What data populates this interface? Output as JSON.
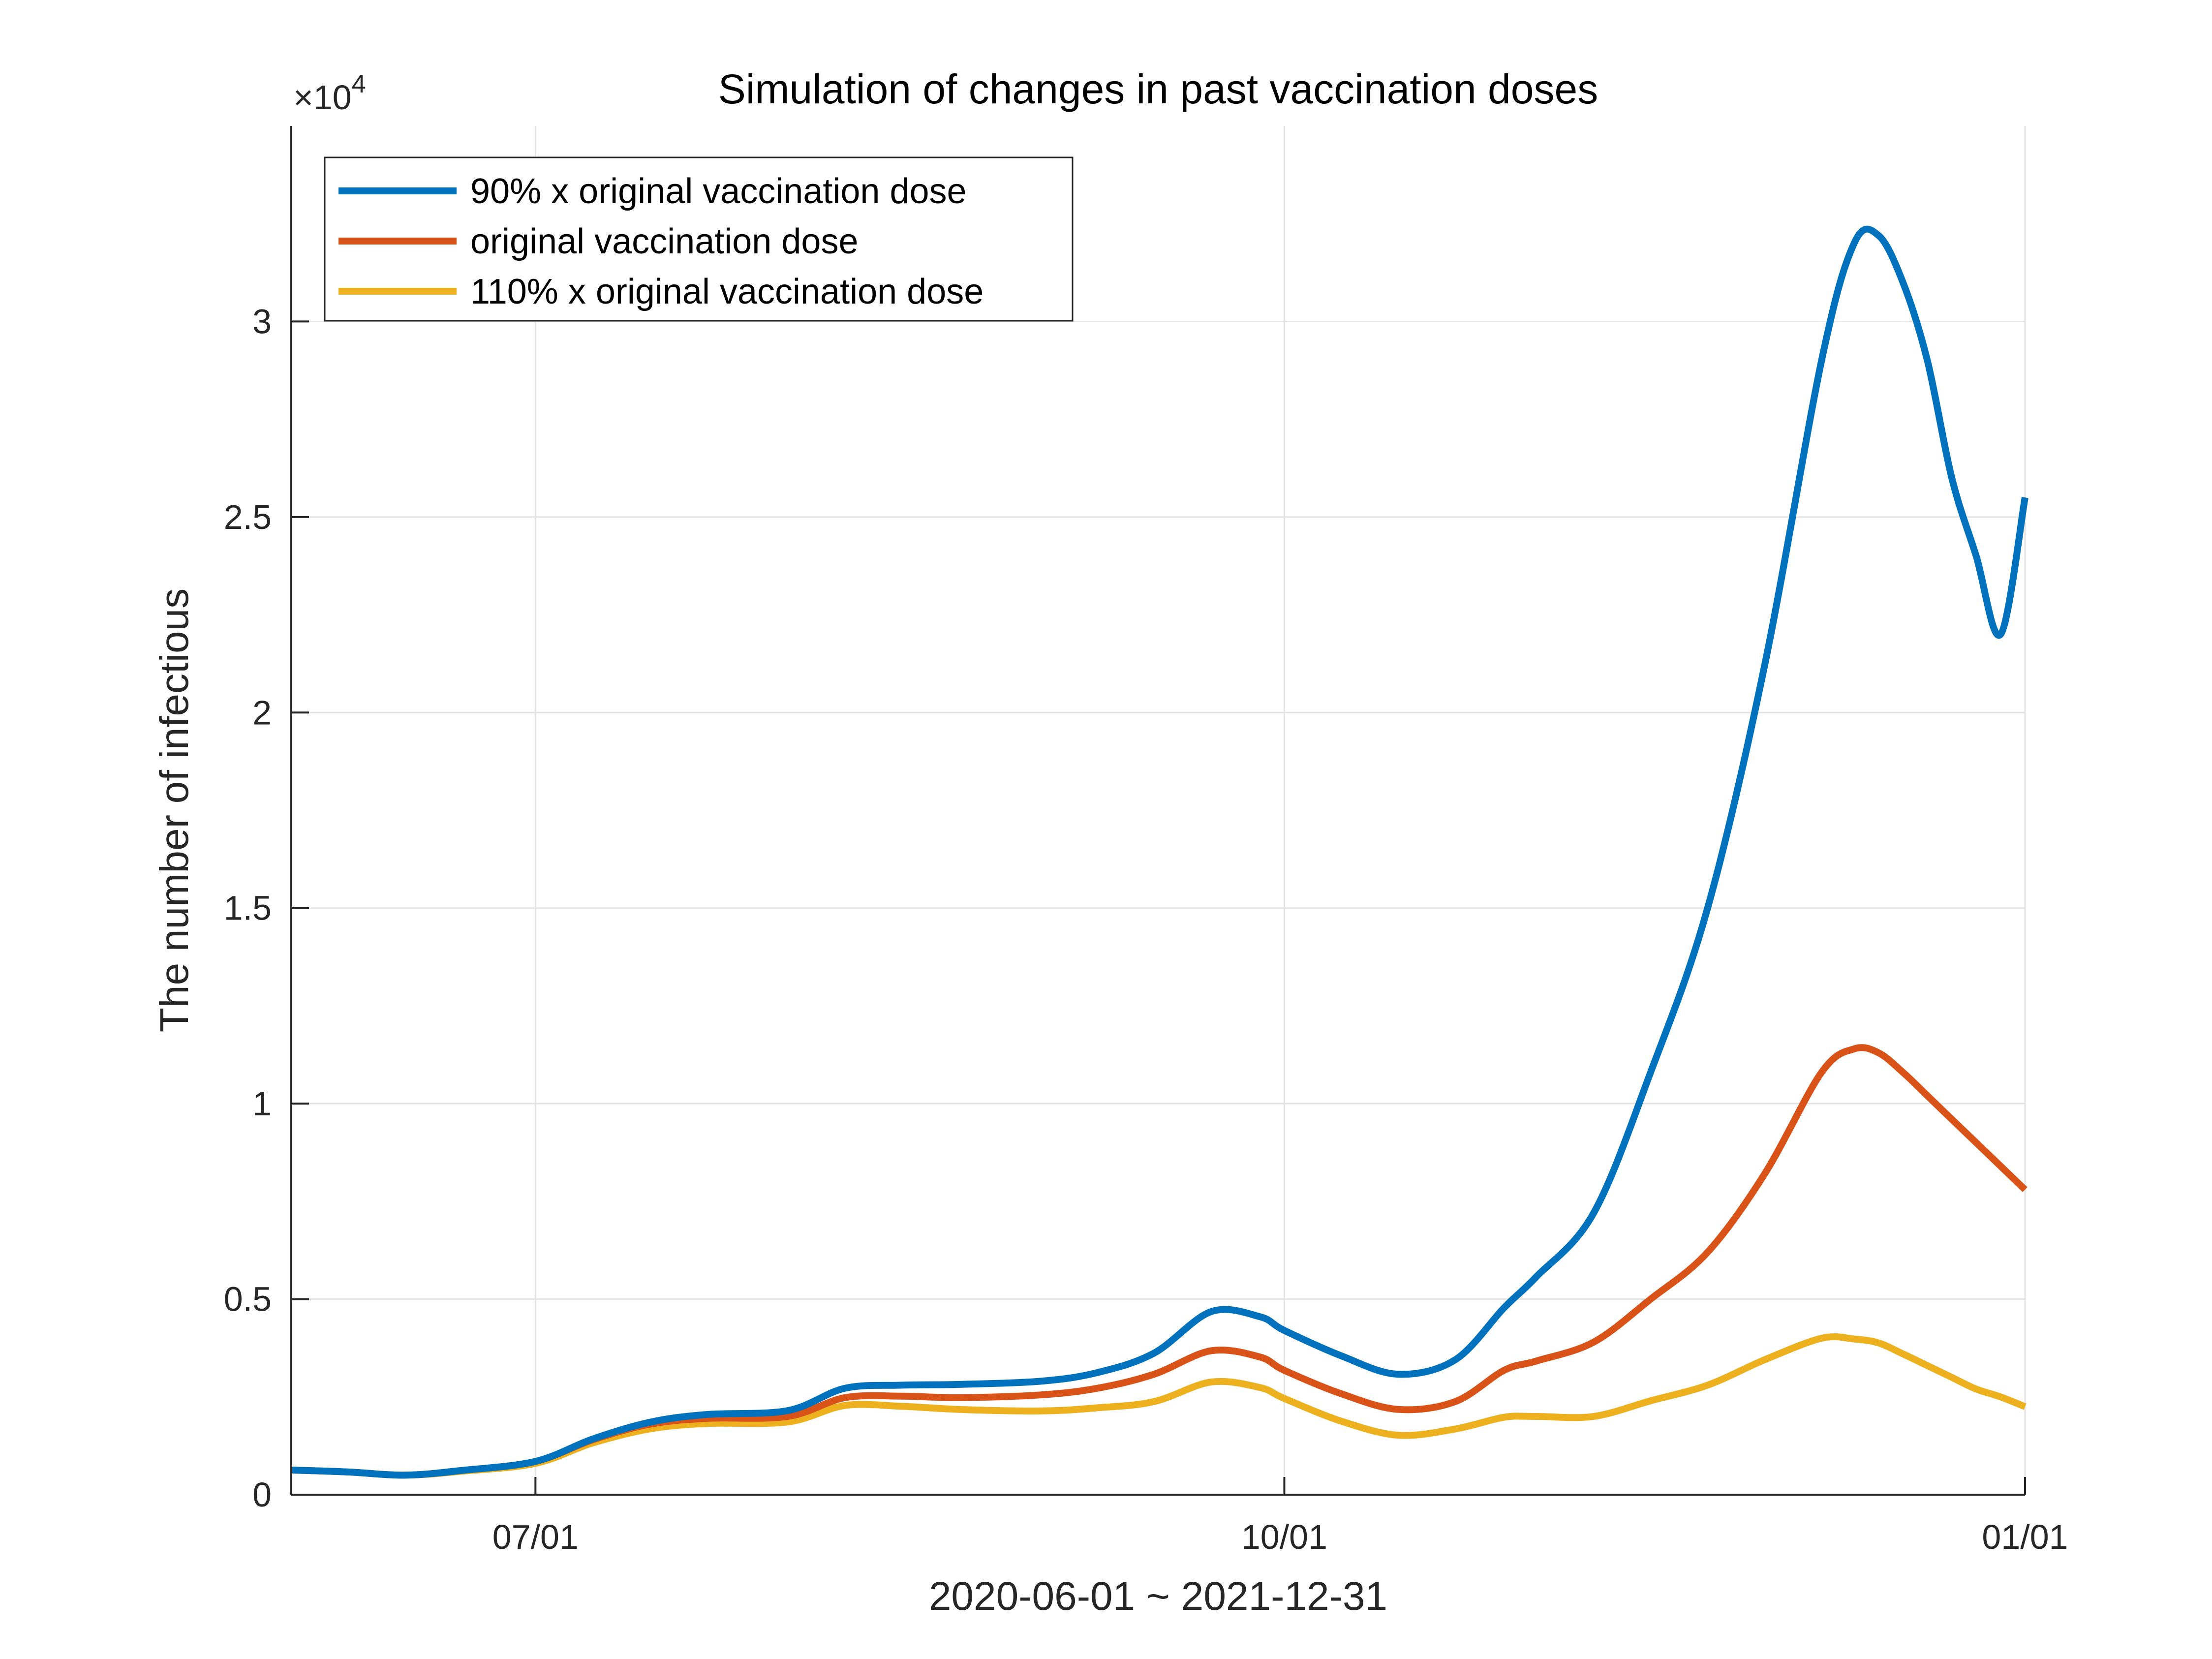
{
  "chart_data": {
    "type": "line",
    "title": "Simulation of changes in past vaccination doses",
    "xlabel": "2020-06-01 ~ 2021-12-31",
    "ylabel": "The number of infectious",
    "y_exponent_label": {
      "prefix": "×10",
      "power": "4"
    },
    "grid": true,
    "legend_position": "top-left",
    "x_domain": [
      "2021-06-01",
      "2021-12-31"
    ],
    "x_ticks": [
      {
        "date": "2021-07-01",
        "label": "07/01"
      },
      {
        "date": "2021-10-01",
        "label": "10/01"
      },
      {
        "date": "2022-01-01",
        "label": "01/01"
      }
    ],
    "ylim": [
      0,
      3.5
    ],
    "y_ticks": [
      {
        "value": 0,
        "label": "0"
      },
      {
        "value": 0.5,
        "label": "0.5"
      },
      {
        "value": 1,
        "label": "1"
      },
      {
        "value": 1.5,
        "label": "1.5"
      },
      {
        "value": 2,
        "label": "2"
      },
      {
        "value": 2.5,
        "label": "2.5"
      },
      {
        "value": 3,
        "label": "3"
      }
    ],
    "x": [
      "2021-06-01",
      "2021-06-08",
      "2021-06-15",
      "2021-06-22",
      "2021-07-01",
      "2021-07-08",
      "2021-07-15",
      "2021-07-22",
      "2021-08-01",
      "2021-08-08",
      "2021-08-15",
      "2021-08-22",
      "2021-09-01",
      "2021-09-08",
      "2021-09-15",
      "2021-09-22",
      "2021-09-28",
      "2021-10-01",
      "2021-10-08",
      "2021-10-15",
      "2021-10-22",
      "2021-10-28",
      "2021-11-01",
      "2021-11-08",
      "2021-11-15",
      "2021-11-22",
      "2021-11-29",
      "2021-12-06",
      "2021-12-10",
      "2021-12-13",
      "2021-12-16",
      "2021-12-19",
      "2021-12-22",
      "2021-12-25",
      "2021-12-28",
      "2021-12-31"
    ],
    "series": [
      {
        "name": "90% x original vaccination dose",
        "color": "#0072BD",
        "values": [
          0.063,
          0.058,
          0.05,
          0.062,
          0.085,
          0.142,
          0.185,
          0.205,
          0.215,
          0.272,
          0.28,
          0.282,
          0.29,
          0.312,
          0.362,
          0.468,
          0.455,
          0.42,
          0.355,
          0.308,
          0.345,
          0.478,
          0.558,
          0.72,
          1.08,
          1.5,
          2.12,
          2.9,
          3.2,
          3.22,
          3.1,
          2.9,
          2.6,
          2.4,
          2.2,
          2.55
        ]
      },
      {
        "name": "original vaccination dose",
        "color": "#D95319",
        "values": [
          0.063,
          0.058,
          0.05,
          0.062,
          0.085,
          0.14,
          0.18,
          0.195,
          0.2,
          0.248,
          0.252,
          0.248,
          0.255,
          0.272,
          0.308,
          0.368,
          0.352,
          0.318,
          0.258,
          0.218,
          0.238,
          0.318,
          0.342,
          0.39,
          0.5,
          0.62,
          0.82,
          1.08,
          1.14,
          1.13,
          1.08,
          1.02,
          0.96,
          0.9,
          0.84,
          0.78
        ]
      },
      {
        "name": "110% x original vaccination dose",
        "color": "#EDB120",
        "values": [
          0.063,
          0.058,
          0.05,
          0.06,
          0.08,
          0.132,
          0.168,
          0.182,
          0.186,
          0.228,
          0.226,
          0.218,
          0.214,
          0.222,
          0.238,
          0.288,
          0.274,
          0.246,
          0.188,
          0.152,
          0.168,
          0.198,
          0.2,
          0.2,
          0.24,
          0.28,
          0.345,
          0.4,
          0.398,
          0.388,
          0.36,
          0.33,
          0.3,
          0.27,
          0.25,
          0.225
        ]
      }
    ]
  }
}
